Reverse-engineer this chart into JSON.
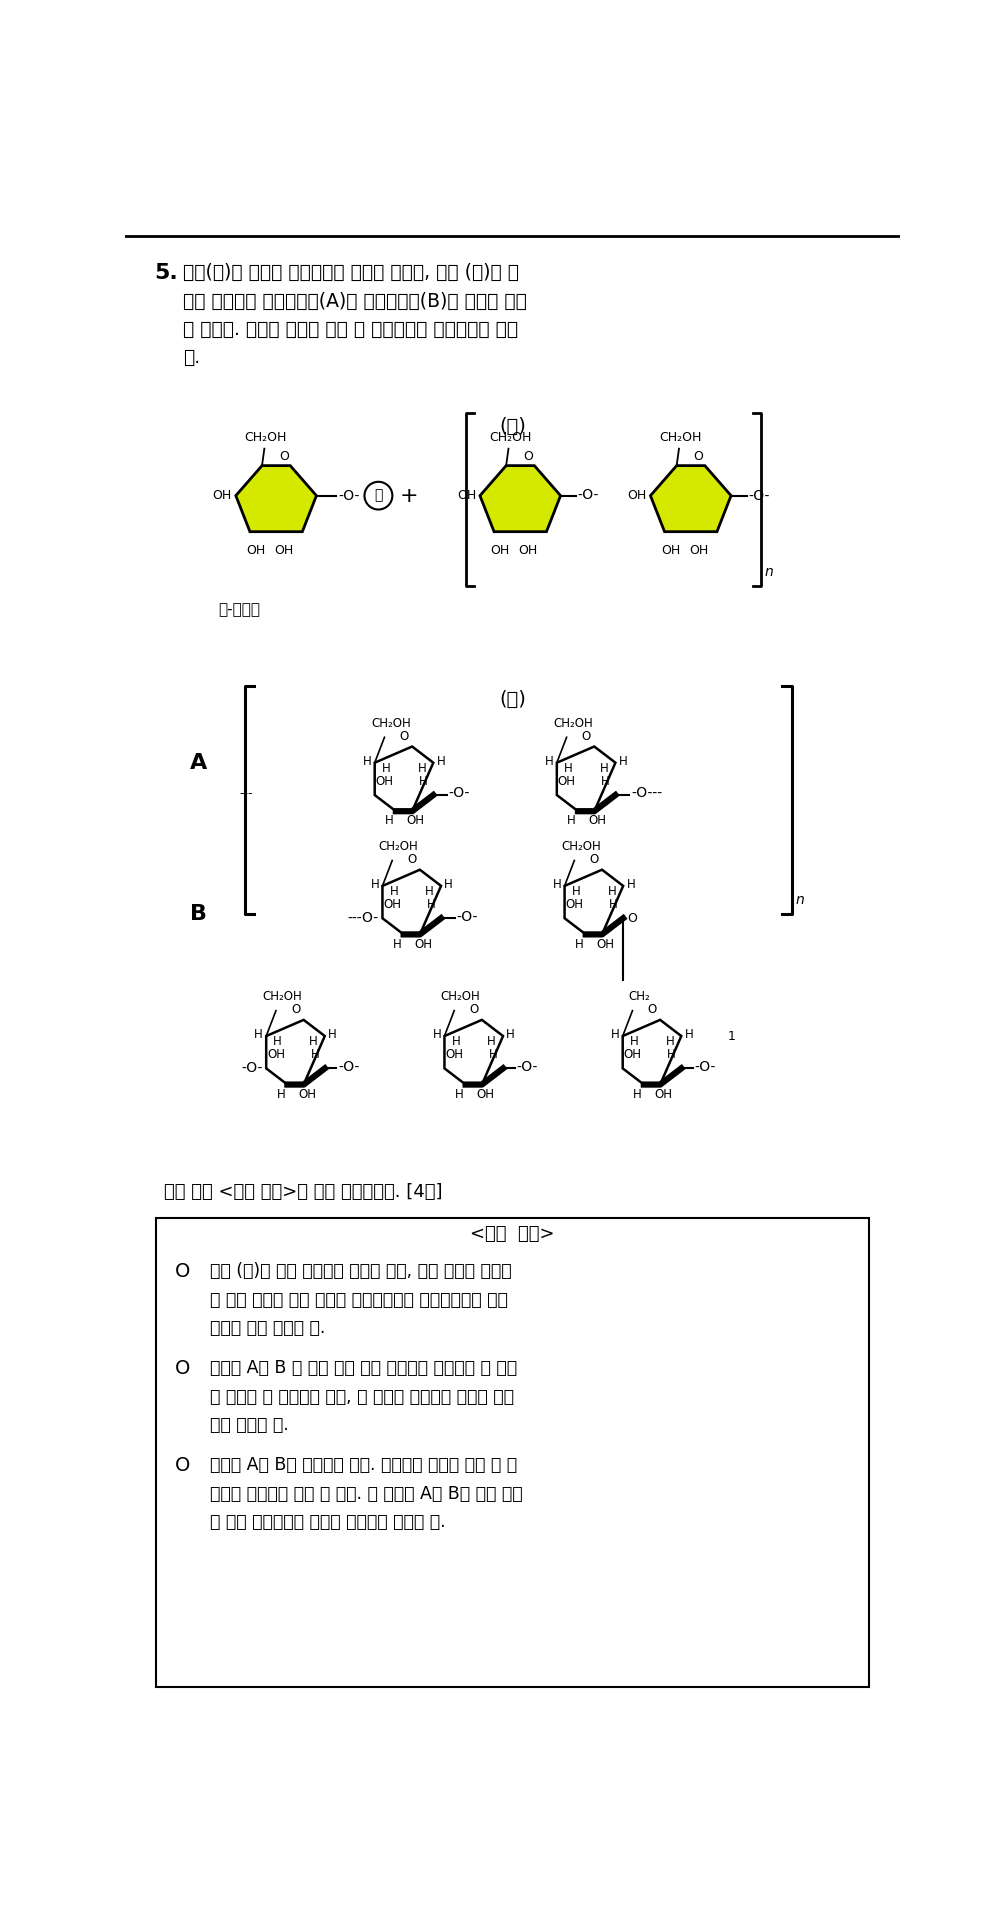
{
  "title_number": "5.",
  "title_text_line1": "그림(가)는 녹말의 신장과정을 나타낸 것이고, 그림 (나)는 녹",
  "title_text_line2": "말을 구성하는 아밀로오스(A)와 아밀로펙팀(B)의 구조를 나타",
  "title_text_line3": "낸 것이다. 녹말은 요오드 반응 시 적갈색에서 청남색으로 변한",
  "title_text_line4": "다.",
  "ga_label": "(가)",
  "na_label": "(나)",
  "A_label": "A",
  "B_label": "B",
  "legend_text": "㎍-포도당",
  "question_text": "이에 대해 <작성 방법>에 따라 서술하시오. [4점]",
  "method_title": "<작성  방법>",
  "method_item1_line1": "그림 (가)의 ㎍에 해당하는 물질을 쓰고, 새로 첨가된 포도당",
  "method_item1_line2": "이 있는 부위가 어느 말단에 해당하는지를 환원제로서의 작용",
  "method_item1_line3": "여부를 통해 제시할 것.",
  "method_item2_line1": "합성된 A와 B 중 어떤 것이 일정 시간동안 포도당을 더 빠르",
  "method_item2_line2": "게 제공할 수 있는지를 쓰고, 그 이유를 분해되는 부위를 제시",
  "method_item2_line3": "하여 설명할 것.",
  "method_item3_line1": "감자는 A와 B로 구성되어 있다. 감자마다 요오드 반응 시 청",
  "method_item3_line2": "남색의 진하기가 다를 수 있다. 그 이유를 A와 B의 반응 정도",
  "method_item3_line3": "와 감자 구성비율의 차이를 제시하여 설명할 것.",
  "bg_color": "#ffffff",
  "hex_fill_color": "#d4e800",
  "hex_stroke_color": "#000000"
}
